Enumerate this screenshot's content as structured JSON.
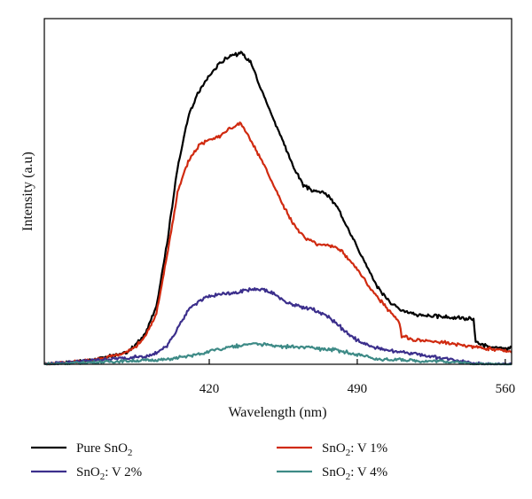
{
  "chart_data": {
    "type": "line",
    "title": "",
    "xlabel": "Wavelength (nm)",
    "ylabel": "Intensity (a.u)",
    "xlim": [
      342,
      563
    ],
    "ylim": [
      0,
      1.09
    ],
    "xticks": [
      420,
      490,
      560
    ],
    "yticks_labeled": false,
    "grid": false,
    "legend_position": "bottom",
    "series": [
      {
        "name": "Pure SnO2",
        "label_parts": {
          "main": "Pure SnO",
          "sub": "2",
          "rest": ""
        },
        "color": "#000000",
        "x": [
          342,
          350,
          360,
          370,
          380,
          385,
          390,
          395,
          400,
          405,
          410,
          415,
          420,
          425,
          430,
          435,
          440,
          445,
          450,
          455,
          460,
          465,
          470,
          475,
          480,
          485,
          490,
          495,
          500,
          505,
          510,
          515,
          520,
          530,
          540,
          545,
          546,
          550,
          555,
          560,
          563
        ],
        "values": [
          0.0,
          0.005,
          0.01,
          0.02,
          0.035,
          0.06,
          0.1,
          0.18,
          0.38,
          0.62,
          0.78,
          0.86,
          0.91,
          0.95,
          0.975,
          0.98,
          0.95,
          0.86,
          0.78,
          0.7,
          0.62,
          0.56,
          0.545,
          0.54,
          0.5,
          0.44,
          0.37,
          0.3,
          0.24,
          0.2,
          0.175,
          0.16,
          0.155,
          0.15,
          0.145,
          0.143,
          0.07,
          0.06,
          0.05,
          0.05,
          0.05
        ]
      },
      {
        "name": "SnO2: V 1%",
        "label_parts": {
          "main": "SnO",
          "sub": "2",
          "rest": ": V 1%"
        },
        "color": "#d02a10",
        "x": [
          342,
          350,
          360,
          370,
          380,
          385,
          390,
          395,
          400,
          405,
          410,
          415,
          420,
          425,
          430,
          435,
          440,
          445,
          450,
          455,
          460,
          465,
          470,
          475,
          480,
          485,
          490,
          495,
          500,
          505,
          510,
          511,
          515,
          520,
          530,
          540,
          550,
          563
        ],
        "values": [
          0.0,
          0.005,
          0.01,
          0.02,
          0.035,
          0.055,
          0.09,
          0.16,
          0.34,
          0.54,
          0.64,
          0.69,
          0.71,
          0.72,
          0.745,
          0.76,
          0.7,
          0.64,
          0.57,
          0.5,
          0.44,
          0.4,
          0.38,
          0.375,
          0.37,
          0.34,
          0.3,
          0.25,
          0.21,
          0.17,
          0.13,
          0.09,
          0.08,
          0.075,
          0.07,
          0.06,
          0.05,
          0.04
        ]
      },
      {
        "name": "SnO2: V 2%",
        "label_parts": {
          "main": "SnO",
          "sub": "2",
          "rest": ": V 2%"
        },
        "color": "#3c2f8c",
        "x": [
          342,
          360,
          380,
          390,
          395,
          400,
          405,
          410,
          415,
          420,
          430,
          440,
          445,
          450,
          455,
          460,
          465,
          470,
          475,
          480,
          485,
          490,
          495,
          500,
          510,
          520,
          530,
          540,
          550,
          563
        ],
        "values": [
          0.0,
          0.01,
          0.02,
          0.025,
          0.035,
          0.06,
          0.11,
          0.17,
          0.2,
          0.215,
          0.225,
          0.235,
          0.235,
          0.225,
          0.2,
          0.185,
          0.18,
          0.17,
          0.155,
          0.13,
          0.1,
          0.075,
          0.06,
          0.05,
          0.04,
          0.03,
          0.02,
          0.01,
          0.0,
          0.0
        ]
      },
      {
        "name": "SnO2: V 4%",
        "label_parts": {
          "main": "SnO",
          "sub": "2",
          "rest": ": V 4%"
        },
        "color": "#3d8a86",
        "x": [
          342,
          360,
          380,
          400,
          410,
          420,
          430,
          440,
          450,
          460,
          470,
          480,
          490,
          500,
          510,
          520,
          530,
          540,
          550,
          563
        ],
        "values": [
          0.0,
          0.005,
          0.01,
          0.015,
          0.025,
          0.04,
          0.055,
          0.065,
          0.06,
          0.055,
          0.05,
          0.045,
          0.03,
          0.015,
          0.015,
          0.01,
          0.01,
          0.005,
          0.0,
          0.0
        ]
      }
    ]
  }
}
